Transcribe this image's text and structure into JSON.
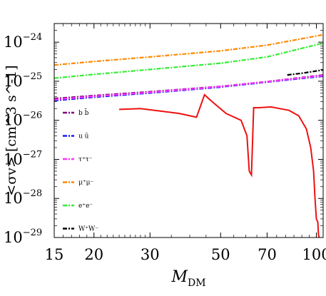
{
  "chart_data": {
    "type": "line",
    "xlabel": "M_DM",
    "xlabel_main": "M",
    "xlabel_sub": "DM",
    "ylabel": "<σv> [cm^3 s^-1]",
    "x_scale": "log",
    "y_scale": "log",
    "xlim": [
      15,
      105
    ],
    "ylim": [
      1e-29,
      3e-24
    ],
    "x_ticks": [
      {
        "value": 15,
        "label": "15"
      },
      {
        "value": 20,
        "label": "20"
      },
      {
        "value": 30,
        "label": "30"
      },
      {
        "value": 50,
        "label": "50"
      },
      {
        "value": 70,
        "label": "70"
      },
      {
        "value": 100,
        "label": "100"
      }
    ],
    "y_ticks": [
      {
        "value": 1e-24,
        "base": "10",
        "exp": "−24"
      },
      {
        "value": 1e-25,
        "base": "10",
        "exp": "−25"
      },
      {
        "value": 1e-26,
        "base": "10",
        "exp": "−26"
      },
      {
        "value": 1e-27,
        "base": "10",
        "exp": "−27"
      },
      {
        "value": 1e-28,
        "base": "10",
        "exp": "−28"
      },
      {
        "value": 1e-29,
        "base": "10",
        "exp": "−29"
      }
    ],
    "legend_position": "left-inside",
    "series": [
      {
        "name": "b b̄",
        "color": "#800080",
        "dash": "6,2,2,2",
        "x": [
          15,
          20,
          30,
          50,
          70,
          105
        ],
        "y": [
          3.6e-26,
          4.3e-26,
          5.4e-26,
          7.4e-26,
          9.8e-26,
          1.45e-25
        ]
      },
      {
        "name": "u ū",
        "color": "#1a1aff",
        "dash": "6,2,2,2",
        "x": [
          15,
          20,
          30,
          50,
          70,
          105
        ],
        "y": [
          3.2e-26,
          3.9e-26,
          5e-26,
          7.1e-26,
          9.5e-26,
          1.35e-25
        ]
      },
      {
        "name": "τ⁺τ⁻",
        "color": "#ff33ff",
        "dash": "6,2,2,2",
        "x": [
          15,
          20,
          30,
          50,
          70,
          105
        ],
        "y": [
          3.4e-26,
          4.1e-26,
          5.2e-26,
          7.3e-26,
          9.7e-26,
          1.4e-25
        ]
      },
      {
        "name": "μ⁺μ⁻",
        "color": "#ff8800",
        "dash": "6,2,2,2",
        "x": [
          15,
          20,
          30,
          50,
          70,
          105
        ],
        "y": [
          2.6e-25,
          3.2e-25,
          4.2e-25,
          6e-25,
          8.4e-25,
          1.55e-24
        ]
      },
      {
        "name": "e⁺e⁻",
        "color": "#33ee33",
        "dash": "6,2,2,2",
        "x": [
          15,
          20,
          30,
          50,
          70,
          105
        ],
        "y": [
          1.2e-25,
          1.5e-25,
          2e-25,
          2.9e-25,
          4.2e-25,
          9.5e-25
        ]
      },
      {
        "name": "W⁺W⁻",
        "color": "#000000",
        "dash": "6,2,2,2",
        "x": [
          81,
          90,
          105
        ],
        "y": [
          1.45e-25,
          1.6e-25,
          1.95e-25
        ]
      },
      {
        "name": "",
        "color": "#ee1111",
        "dash": "",
        "x": [
          24,
          28,
          37,
          42,
          44.5,
          47,
          52,
          58,
          60.5,
          61.5,
          62.5,
          63.5,
          66,
          72,
          82,
          88,
          93,
          96,
          98,
          99,
          100,
          101,
          101.5,
          102
        ],
        "y": [
          1.9e-26,
          2e-26,
          1.5e-26,
          1.2e-26,
          4.5e-26,
          3e-26,
          1.5e-26,
          1e-26,
          4e-27,
          5e-28,
          4e-28,
          2.1e-26,
          2.1e-26,
          2.2e-26,
          1.8e-26,
          1.3e-26,
          6e-27,
          2e-27,
          5e-28,
          1e-28,
          3e-29,
          2.5e-29,
          1.2e-29,
          1e-29
        ]
      }
    ]
  }
}
